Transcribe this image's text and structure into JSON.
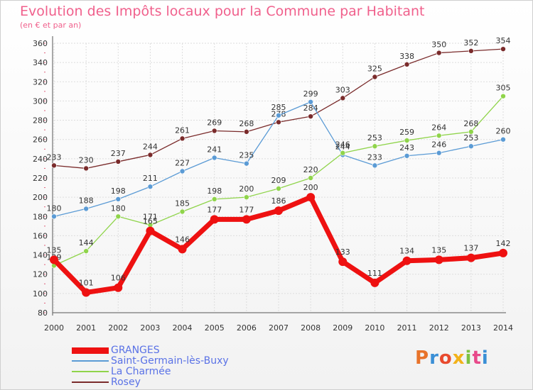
{
  "title": "Evolution des Impôts locaux pour la Commune par Habitant",
  "subtitle": "(en € et par an)",
  "logo_text": "Proxiti",
  "chart_data": {
    "type": "line",
    "x": [
      "2000",
      "2001",
      "2002",
      "2003",
      "2004",
      "2005",
      "2006",
      "2007",
      "2008",
      "2009",
      "2010",
      "2011",
      "2012",
      "2013",
      "2014"
    ],
    "ylim": [
      80,
      360
    ],
    "yticks": [
      80,
      100,
      120,
      140,
      160,
      180,
      200,
      220,
      240,
      260,
      280,
      300,
      320,
      340,
      360
    ],
    "grid": true,
    "legend_position": "bottom-left",
    "series": [
      {
        "name": "GRANGES",
        "color": "#ee1111",
        "values": [
          135,
          101,
          106,
          165,
          146,
          177,
          177,
          186,
          200,
          133,
          111,
          134,
          135,
          137,
          142
        ],
        "labels": [
          "135",
          "101",
          "106",
          "165",
          "146",
          "177",
          "177",
          "186",
          "200",
          "133",
          "111",
          "134",
          "135",
          "137",
          "142"
        ]
      },
      {
        "name": "Saint-Germain-lès-Buxy",
        "color": "#5b9bd5",
        "values": [
          180,
          188,
          198,
          211,
          227,
          241,
          235,
          285,
          299,
          244,
          233,
          243,
          246,
          253,
          260
        ],
        "labels": [
          "180",
          "188",
          "198",
          "211",
          "227",
          "241",
          "235",
          "285",
          "299",
          "244",
          "233",
          "243",
          "246",
          "253",
          "260"
        ]
      },
      {
        "name": "La Charmée",
        "color": "#8fd44a",
        "values": [
          129,
          144,
          180,
          171,
          185,
          198,
          200,
          209,
          220,
          246,
          253,
          259,
          264,
          268,
          305
        ],
        "labels": [
          "129",
          "144",
          "180",
          "171",
          "185",
          "198",
          "200",
          "209",
          "220",
          "246",
          "253",
          "259",
          "264",
          "268",
          "305"
        ]
      },
      {
        "name": "Rosey",
        "color": "#7a2b2b",
        "values": [
          233,
          230,
          237,
          244,
          261,
          269,
          268,
          278,
          284,
          303,
          325,
          338,
          350,
          352,
          354
        ],
        "labels": [
          "233",
          "230",
          "237",
          "244",
          "261",
          "269",
          "268",
          "278",
          "284",
          "303",
          "325",
          "338",
          "350",
          "352",
          "354"
        ]
      }
    ]
  }
}
